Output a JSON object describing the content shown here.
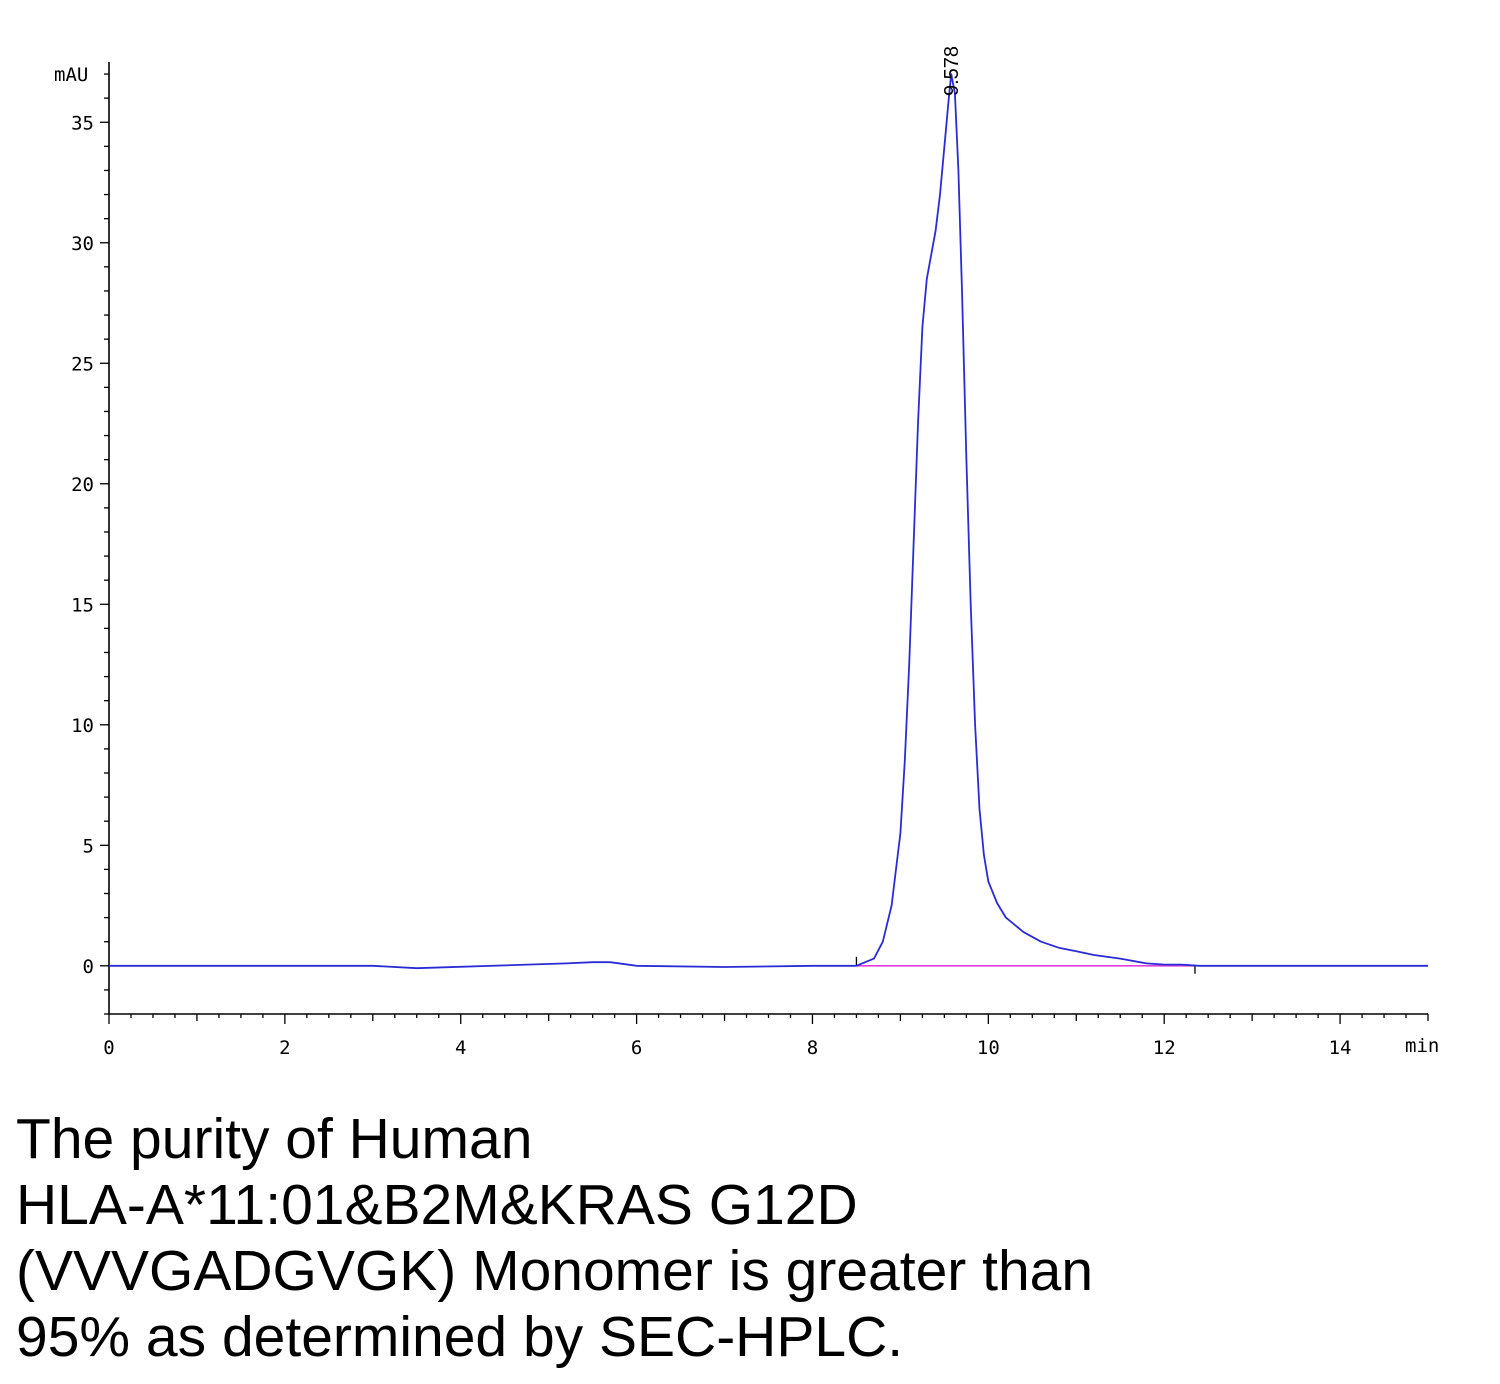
{
  "chart_data": {
    "type": "line",
    "ylabel": "mAU",
    "xlabel_unit": "min",
    "xlim": [
      0,
      15
    ],
    "ylim": [
      -2,
      37.5
    ],
    "x_ticks": [
      0,
      2,
      4,
      6,
      8,
      10,
      12,
      14
    ],
    "y_ticks": [
      0,
      5,
      10,
      15,
      20,
      25,
      30,
      35
    ],
    "grid": false,
    "peak_annotation": {
      "label": "9.578",
      "x": 9.578,
      "y": 37.0
    },
    "integration_baseline": {
      "x_start": 8.5,
      "x_end": 12.35,
      "y": 0
    },
    "series": [
      {
        "color": "#2b2bd6",
        "x": [
          0,
          3.0,
          3.5,
          5.2,
          5.5,
          5.7,
          6.0,
          7.0,
          8.0,
          8.5,
          8.7,
          8.8,
          8.9,
          9.0,
          9.05,
          9.1,
          9.15,
          9.2,
          9.25,
          9.3,
          9.35,
          9.4,
          9.45,
          9.5,
          9.55,
          9.578,
          9.62,
          9.66,
          9.7,
          9.75,
          9.8,
          9.85,
          9.9,
          9.95,
          10.0,
          10.1,
          10.2,
          10.4,
          10.6,
          10.8,
          11.0,
          11.2,
          11.5,
          11.8,
          12.0,
          12.2,
          12.4,
          13.0,
          14.0,
          15.0
        ],
        "y": [
          0,
          0,
          -0.1,
          0.1,
          0.15,
          0.15,
          0,
          -0.05,
          0,
          0,
          0.3,
          1.0,
          2.5,
          5.5,
          8.5,
          12.5,
          17.5,
          22.5,
          26.5,
          28.5,
          29.5,
          30.5,
          32.0,
          34.0,
          36.0,
          37.0,
          36.2,
          33.0,
          28.0,
          21.0,
          15.0,
          10.0,
          6.5,
          4.6,
          3.5,
          2.6,
          2.0,
          1.4,
          1.0,
          0.75,
          0.6,
          0.45,
          0.3,
          0.1,
          0.05,
          0.05,
          0,
          0,
          0,
          0
        ]
      }
    ]
  },
  "caption": {
    "line1": "The purity of Human",
    "line2": "HLA-A*11:01&B2M&KRAS G12D",
    "line3": "(VVVGADGVGK) Monomer is greater than",
    "line4": "95% as determined by SEC-HPLC."
  }
}
